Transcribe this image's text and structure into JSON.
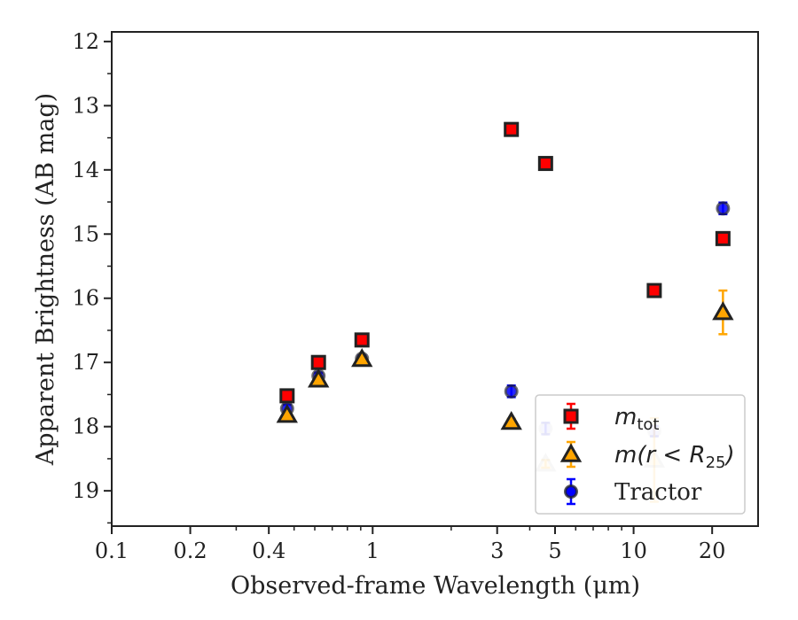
{
  "chart_data": {
    "type": "scatter",
    "xlabel": "Observed-frame Wavelength (μm)",
    "ylabel": "Apparent Brightness (AB mag)",
    "xscale": "log",
    "xlim": [
      0.1,
      30
    ],
    "ylim": [
      19.55,
      11.85
    ],
    "y_inverted": true,
    "grid": false,
    "legend_placement": "bottom-right",
    "x_tick_labels": [
      "0.1",
      "0.2",
      "0.4",
      "1",
      "3",
      "5",
      "10",
      "20"
    ],
    "x_ticks": [
      0.1,
      0.2,
      0.4,
      1,
      3,
      5,
      10,
      20
    ],
    "y_tick_labels": [
      "12",
      "13",
      "14",
      "15",
      "16",
      "17",
      "18",
      "19"
    ],
    "y_ticks": [
      12,
      13,
      14,
      15,
      16,
      17,
      18,
      19
    ],
    "series": [
      {
        "name_base": "m",
        "name_sub": "tot",
        "marker": "square",
        "color": "#ff0000",
        "edge_color": "#222222",
        "points": [
          {
            "x": 0.47,
            "y": 17.52,
            "yerr": 0.05
          },
          {
            "x": 0.62,
            "y": 17.0,
            "yerr": 0.04
          },
          {
            "x": 0.91,
            "y": 16.65,
            "yerr": 0.04
          },
          {
            "x": 3.4,
            "y": 13.37,
            "yerr": 0.03
          },
          {
            "x": 4.6,
            "y": 13.9,
            "yerr": 0.03
          },
          {
            "x": 12.0,
            "y": 15.88,
            "yerr": 0.04
          },
          {
            "x": 22.0,
            "y": 15.07,
            "yerr": 0.05
          }
        ]
      },
      {
        "name_prefix": "m(r < ",
        "name_base": "R",
        "name_sub": "25",
        "name_suffix": ")",
        "marker": "triangle",
        "color": "#ffa500",
        "edge_color": "#222222",
        "points": [
          {
            "x": 0.47,
            "y": 17.82,
            "yerr": 0.03
          },
          {
            "x": 0.62,
            "y": 17.27,
            "yerr": 0.03
          },
          {
            "x": 0.91,
            "y": 16.95,
            "yerr": 0.03
          },
          {
            "x": 3.4,
            "y": 17.93,
            "yerr": 0.05
          },
          {
            "x": 4.6,
            "y": 18.58,
            "yerr": 0.06,
            "faded": true
          },
          {
            "x": 12.0,
            "y": 18.52,
            "yerr": 0.65,
            "faded": true
          },
          {
            "x": 22.0,
            "y": 16.22,
            "yerr": 0.34
          }
        ]
      },
      {
        "name": "Tractor",
        "marker": "circle",
        "color": "#0000ff",
        "edge_color": "#222222",
        "points": [
          {
            "x": 0.47,
            "y": 17.72,
            "yerr": 0.06
          },
          {
            "x": 0.62,
            "y": 17.21,
            "yerr": 0.05
          },
          {
            "x": 0.91,
            "y": 16.94,
            "yerr": 0.05
          },
          {
            "x": 3.4,
            "y": 17.45,
            "yerr": 0.09
          },
          {
            "x": 4.6,
            "y": 18.03,
            "yerr": 0.09,
            "faded": true
          },
          {
            "x": 12.0,
            "y": 18.07,
            "yerr": 0.08,
            "faded": true
          },
          {
            "x": 22.0,
            "y": 14.6,
            "yerr": 0.09
          }
        ]
      }
    ]
  }
}
